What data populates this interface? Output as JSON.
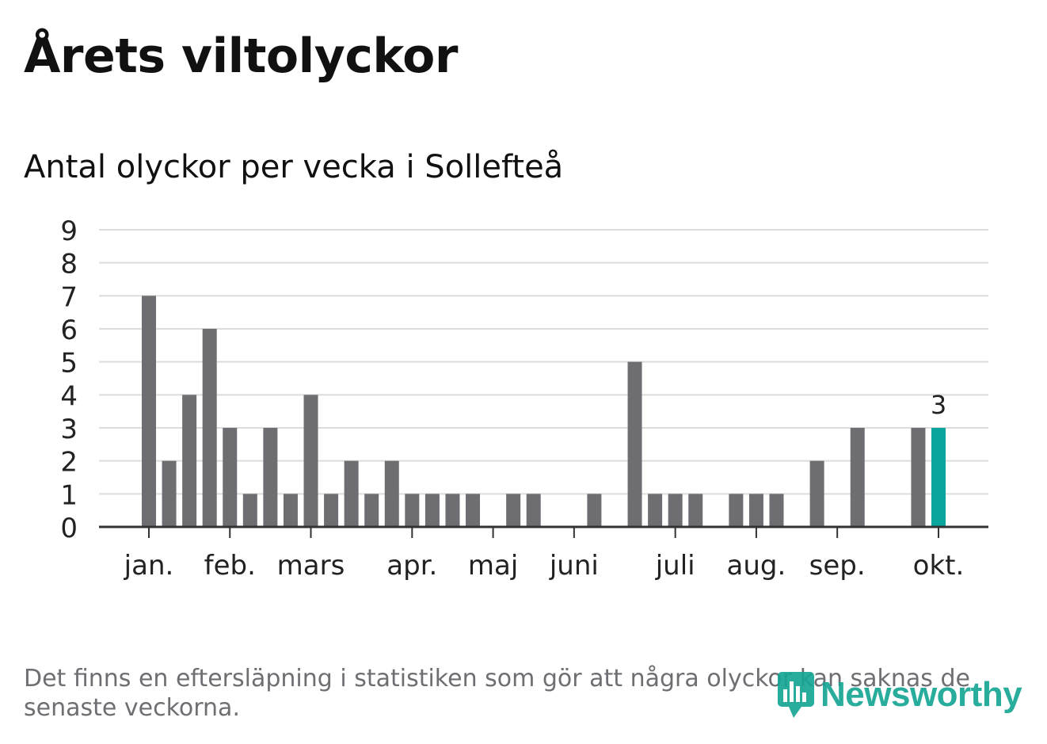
{
  "title": "Årets viltolyckor",
  "subtitle": "Antal olyckor per vecka i Sollefteå",
  "footnote": "Det finns en eftersläpning i statistiken som gör att några olyckor kan saknas de senaste veckorna.",
  "logo": {
    "text": "Newsworthy",
    "icon": "bar-chart-speech-bubble-icon"
  },
  "colors": {
    "bar": "#6e6d72",
    "highlight": "#0aa59c",
    "grid": "#dcdcdc",
    "axis": "#333333",
    "text": "#222222",
    "brand": "#16a594"
  },
  "chart_data": {
    "type": "bar",
    "title": "Antal olyckor per vecka i Sollefteå",
    "xlabel": "",
    "ylabel": "",
    "ylim": [
      0,
      9
    ],
    "yticks": [
      0,
      1,
      2,
      3,
      4,
      5,
      6,
      7,
      8,
      9
    ],
    "grid": true,
    "weeks": [
      1,
      2,
      3,
      4,
      5,
      6,
      7,
      8,
      9,
      10,
      11,
      12,
      13,
      14,
      15,
      16,
      17,
      18,
      19,
      20,
      21,
      22,
      23,
      24,
      25,
      26,
      27,
      28,
      29,
      30,
      31,
      32,
      33,
      34,
      35,
      36,
      37,
      38,
      39,
      40
    ],
    "values": [
      7,
      2,
      4,
      6,
      3,
      1,
      3,
      1,
      4,
      1,
      2,
      1,
      2,
      1,
      1,
      1,
      1,
      0,
      1,
      1,
      0,
      0,
      1,
      0,
      5,
      1,
      1,
      1,
      0,
      1,
      1,
      1,
      0,
      2,
      0,
      3,
      0,
      0,
      3,
      3
    ],
    "highlight_index": 39,
    "highlight_label": "3",
    "month_ticks": [
      {
        "label": "jan.",
        "week": 1
      },
      {
        "label": "feb.",
        "week": 5
      },
      {
        "label": "mars",
        "week": 9
      },
      {
        "label": "apr.",
        "week": 14
      },
      {
        "label": "maj",
        "week": 18
      },
      {
        "label": "juni",
        "week": 22
      },
      {
        "label": "juli",
        "week": 27
      },
      {
        "label": "aug.",
        "week": 31
      },
      {
        "label": "sep.",
        "week": 35
      },
      {
        "label": "okt.",
        "week": 40
      }
    ]
  }
}
